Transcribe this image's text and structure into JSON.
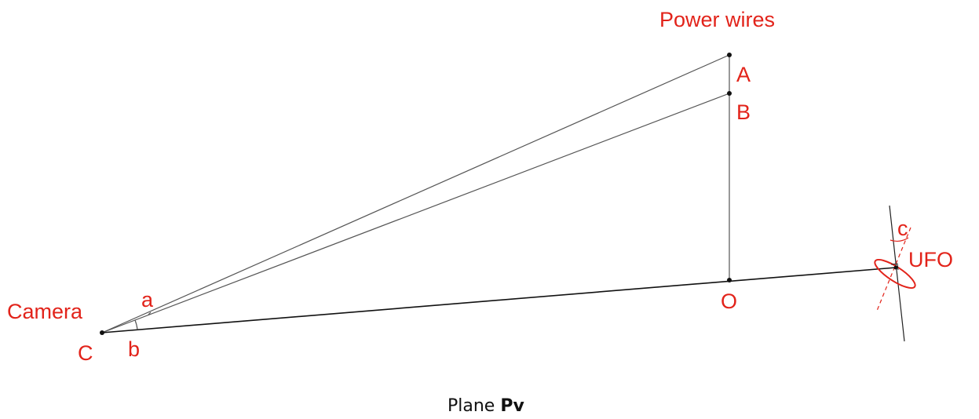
{
  "labels": {
    "power_wires": "Power wires",
    "a_point": "A",
    "b_point": "B",
    "camera": "Camera",
    "c_point": "C",
    "angle_a": "a",
    "angle_b": "b",
    "o_point": "O",
    "angle_c": "c",
    "ufo": "UFO"
  },
  "caption": {
    "text": "Plane",
    "symbol": "Pv"
  }
}
